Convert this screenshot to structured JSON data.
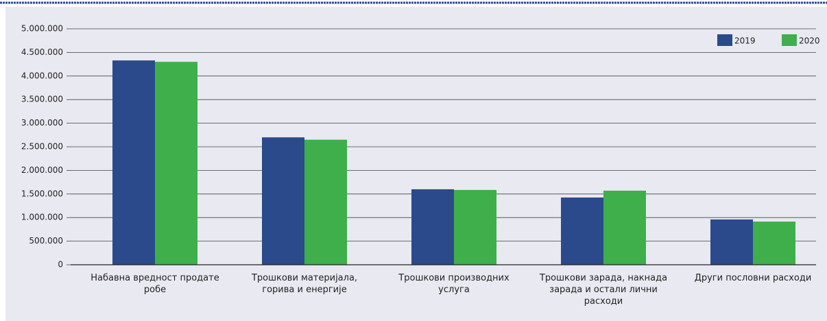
{
  "chart_data": {
    "type": "bar",
    "categories": [
      "Набавна вредност продате робе",
      "Трошкови материјала, горива и енергије",
      "Трошкови производних услуга",
      "Трошкови зарада, накнада зарада и остали лични расходи",
      "Други пословни расходи"
    ],
    "series": [
      {
        "name": "2019",
        "color": "#2b4a8c",
        "values": [
          4330000,
          2700000,
          1600000,
          1425000,
          960000
        ]
      },
      {
        "name": "2020",
        "color": "#3eaf4b",
        "values": [
          4300000,
          2650000,
          1585000,
          1570000,
          915000
        ]
      }
    ],
    "ylim": [
      0,
      5000000
    ],
    "yticks": [
      0,
      {
        "value": 500000,
        "label": "500.000"
      },
      {
        "value": 1000000,
        "label": "1.000.000"
      },
      {
        "value": 1500000,
        "label": "1.500.000"
      },
      {
        "value": 2000000,
        "label": "2.000.000"
      },
      {
        "value": 2500000,
        "label": "2.500.000"
      },
      {
        "value": 3000000,
        "label": "3.000.000"
      },
      {
        "value": 3500000,
        "label": "3.500.000"
      },
      {
        "value": 4000000,
        "label": "4.000.000"
      },
      {
        "value": 4500000,
        "label": "4.500.000"
      },
      {
        "value": 5000000,
        "label": "5.000.000"
      }
    ],
    "grid": true,
    "legend": "top-right"
  }
}
